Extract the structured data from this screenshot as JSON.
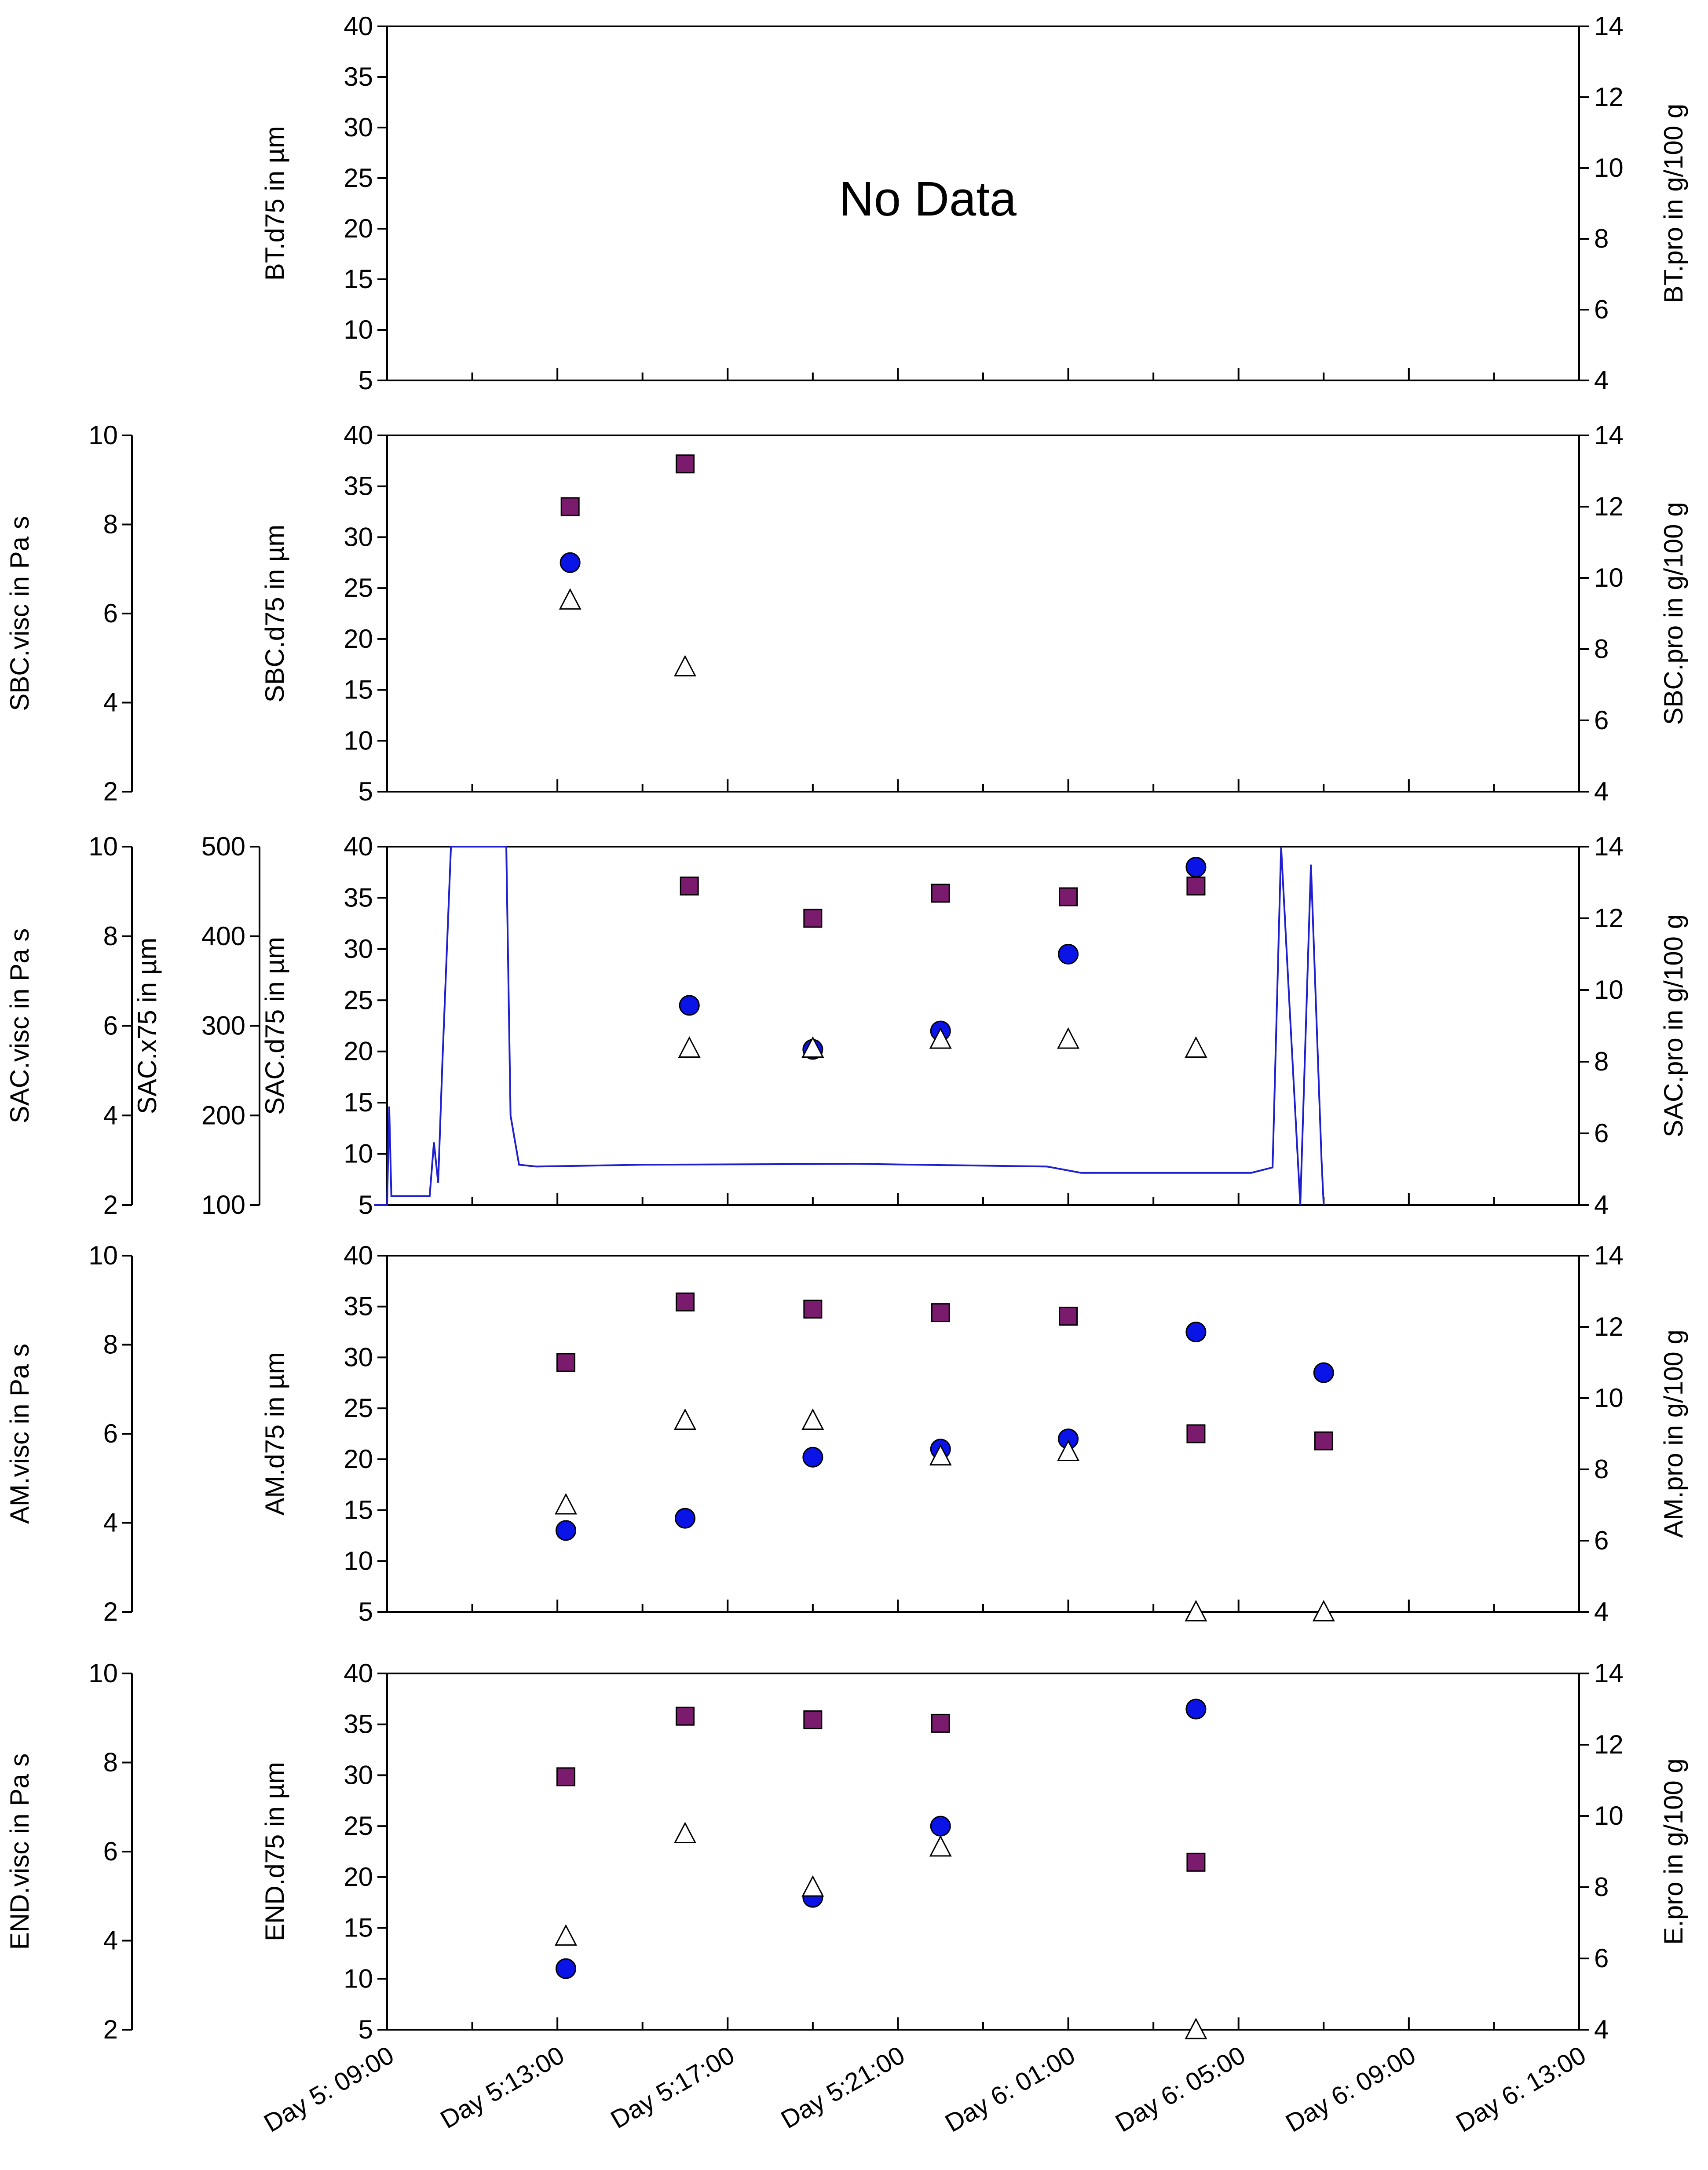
{
  "chart_data": [
    {
      "type": "scatter",
      "panel": "BT",
      "note": "No Data",
      "left_axes": [
        {
          "label": "BT.d75 in µm",
          "ticks": [
            "5",
            "10",
            "15",
            "20",
            "25",
            "30",
            "35",
            "40"
          ],
          "range": [
            5,
            40
          ]
        }
      ],
      "right_axis": {
        "label": "BT.pro in g/100 g",
        "ticks": [
          "4",
          "6",
          "8",
          "10",
          "12",
          "14"
        ],
        "range": [
          4,
          14
        ]
      },
      "series": []
    },
    {
      "type": "scatter",
      "panel": "SBC",
      "left_axes": [
        {
          "label": "SBC.visc in Pa s",
          "ticks": [
            "2",
            "4",
            "6",
            "8",
            "10"
          ],
          "range": [
            2,
            10
          ]
        },
        {
          "label": "SBC.d75 in µm",
          "ticks": [
            "5",
            "10",
            "15",
            "20",
            "25",
            "30",
            "35",
            "40"
          ],
          "range": [
            5,
            40
          ]
        }
      ],
      "right_axis": {
        "label": "SBC.pro in g/100 g",
        "ticks": [
          "4",
          "6",
          "8",
          "10",
          "12",
          "14"
        ],
        "range": [
          4,
          14
        ]
      },
      "series": [
        {
          "name": "pro",
          "marker": "square",
          "color": "#7b1b6e",
          "points": [
            [
              4.3,
              12.0
            ],
            [
              7.0,
              13.2
            ]
          ]
        },
        {
          "name": "d75",
          "marker": "circle",
          "color": "#0a14e6",
          "points": [
            [
              4.3,
              27.5
            ]
          ]
        },
        {
          "name": "visc",
          "marker": "triangle",
          "color": "#ffffff",
          "points": [
            [
              4.3,
              6.3
            ],
            [
              7.0,
              4.8
            ]
          ]
        }
      ]
    },
    {
      "type": "scatter",
      "panel": "SAC",
      "left_axes": [
        {
          "label": "SAC.visc in Pa s",
          "ticks": [
            "2",
            "4",
            "6",
            "8",
            "10"
          ],
          "range": [
            2,
            10
          ]
        },
        {
          "label": "SAC.x75 in µm",
          "ticks": [
            "100",
            "200",
            "300",
            "400",
            "500"
          ],
          "range": [
            100,
            500
          ]
        },
        {
          "label": "SAC.d75 in µm",
          "ticks": [
            "5",
            "10",
            "15",
            "20",
            "25",
            "30",
            "35",
            "40"
          ],
          "range": [
            5,
            40
          ]
        }
      ],
      "right_axis": {
        "label": "SAC.pro in g/100 g",
        "ticks": [
          "4",
          "6",
          "8",
          "10",
          "12",
          "14"
        ],
        "range": [
          4,
          14
        ]
      },
      "series": [
        {
          "name": "pro",
          "marker": "square",
          "color": "#7b1b6e",
          "points": [
            [
              7.1,
              12.9
            ],
            [
              10.0,
              12.0
            ],
            [
              13.0,
              12.7
            ],
            [
              16.0,
              12.6
            ],
            [
              19.0,
              12.9
            ]
          ]
        },
        {
          "name": "d75",
          "marker": "circle",
          "color": "#0a14e6",
          "points": [
            [
              7.1,
              24.5
            ],
            [
              10.0,
              20.2
            ],
            [
              13.0,
              22.0
            ],
            [
              16.0,
              29.5
            ],
            [
              19.0,
              38.0
            ]
          ]
        },
        {
          "name": "visc",
          "marker": "triangle",
          "color": "#ffffff",
          "points": [
            [
              7.1,
              5.5
            ],
            [
              10.0,
              5.5
            ],
            [
              13.0,
              5.7
            ],
            [
              16.0,
              5.7
            ],
            [
              19.0,
              5.5
            ]
          ]
        },
        {
          "name": "x75",
          "style": "line",
          "color": "#1f1fd0",
          "points": [
            [
              -0.3,
              100
            ],
            [
              0.0,
              100
            ],
            [
              0.05,
              210
            ],
            [
              0.1,
              110
            ],
            [
              1.0,
              110
            ],
            [
              1.1,
              170
            ],
            [
              1.2,
              125
            ],
            [
              1.3,
              260
            ],
            [
              1.5,
              500
            ],
            [
              2.8,
              500
            ],
            [
              2.9,
              200
            ],
            [
              3.1,
              145
            ],
            [
              3.5,
              143
            ],
            [
              6.0,
              145
            ],
            [
              11.0,
              146
            ],
            [
              15.5,
              143
            ],
            [
              16.3,
              136
            ],
            [
              20.3,
              136
            ],
            [
              20.8,
              142
            ],
            [
              21.0,
              500
            ],
            [
              21.2,
              320
            ],
            [
              21.45,
              100
            ],
            [
              21.7,
              480
            ],
            [
              21.95,
              150
            ],
            [
              22.0,
              100
            ]
          ]
        }
      ]
    },
    {
      "type": "scatter",
      "panel": "AM",
      "left_axes": [
        {
          "label": "AM.visc in Pa s",
          "ticks": [
            "2",
            "4",
            "6",
            "8",
            "10"
          ],
          "range": [
            2,
            10
          ]
        },
        {
          "label": "AM.d75 in µm",
          "ticks": [
            "5",
            "10",
            "15",
            "20",
            "25",
            "30",
            "35",
            "40"
          ],
          "range": [
            5,
            40
          ]
        }
      ],
      "right_axis": {
        "label": "AM.pro in g/100 g",
        "ticks": [
          "4",
          "6",
          "8",
          "10",
          "12",
          "14"
        ],
        "range": [
          4,
          14
        ]
      },
      "series": [
        {
          "name": "pro",
          "marker": "square",
          "color": "#7b1b6e",
          "points": [
            [
              4.2,
              11.0
            ],
            [
              7.0,
              12.7
            ],
            [
              10.0,
              12.5
            ],
            [
              13.0,
              12.4
            ],
            [
              16.0,
              12.3
            ],
            [
              19.0,
              9.0
            ],
            [
              22.0,
              8.8
            ]
          ]
        },
        {
          "name": "d75",
          "marker": "circle",
          "color": "#0a14e6",
          "points": [
            [
              4.2,
              13.0
            ],
            [
              7.0,
              14.2
            ],
            [
              10.0,
              20.2
            ],
            [
              13.0,
              21.0
            ],
            [
              16.0,
              22.0
            ],
            [
              19.0,
              32.5
            ],
            [
              22.0,
              28.5
            ]
          ]
        },
        {
          "name": "visc",
          "marker": "triangle",
          "color": "#ffffff",
          "points": [
            [
              4.2,
              4.4
            ],
            [
              7.0,
              6.3
            ],
            [
              10.0,
              6.3
            ],
            [
              13.0,
              5.5
            ],
            [
              16.0,
              5.6
            ],
            [
              19.0,
              2.0
            ],
            [
              22.0,
              2.0
            ]
          ]
        }
      ]
    },
    {
      "type": "scatter",
      "panel": "END",
      "left_axes": [
        {
          "label": "END.visc in Pa s",
          "ticks": [
            "2",
            "4",
            "6",
            "8",
            "10"
          ],
          "range": [
            2,
            10
          ]
        },
        {
          "label": "END.d75 in µm",
          "ticks": [
            "5",
            "10",
            "15",
            "20",
            "25",
            "30",
            "35",
            "40"
          ],
          "range": [
            5,
            40
          ]
        }
      ],
      "right_axis": {
        "label": "E.pro in g/100 g",
        "ticks": [
          "4",
          "6",
          "8",
          "10",
          "12",
          "14"
        ],
        "range": [
          4,
          14
        ]
      },
      "x_ticks": [
        "Day 5: 09:00",
        "Day 5:13:00",
        "Day 5:17:00",
        "Day 5:21:00",
        "Day 6: 01:00",
        "Day 6: 05:00",
        "Day 6: 09:00",
        "Day 6: 13:00"
      ],
      "x_range": [
        0,
        28
      ],
      "series": [
        {
          "name": "pro",
          "marker": "square",
          "color": "#7b1b6e",
          "points": [
            [
              4.2,
              11.1
            ],
            [
              7.0,
              12.8
            ],
            [
              10.0,
              12.7
            ],
            [
              13.0,
              12.6
            ],
            [
              19.0,
              8.7
            ]
          ]
        },
        {
          "name": "d75",
          "marker": "circle",
          "color": "#0a14e6",
          "points": [
            [
              4.2,
              11.0
            ],
            [
              7.0,
              null
            ],
            [
              10.0,
              18.0
            ],
            [
              13.0,
              25.0
            ],
            [
              19.0,
              36.5
            ]
          ]
        },
        {
          "name": "visc",
          "marker": "triangle",
          "color": "#ffffff",
          "points": [
            [
              4.2,
              4.1
            ],
            [
              7.0,
              6.4
            ],
            [
              10.0,
              5.2
            ],
            [
              13.0,
              6.1
            ],
            [
              19.0,
              2.0
            ]
          ]
        }
      ]
    }
  ]
}
